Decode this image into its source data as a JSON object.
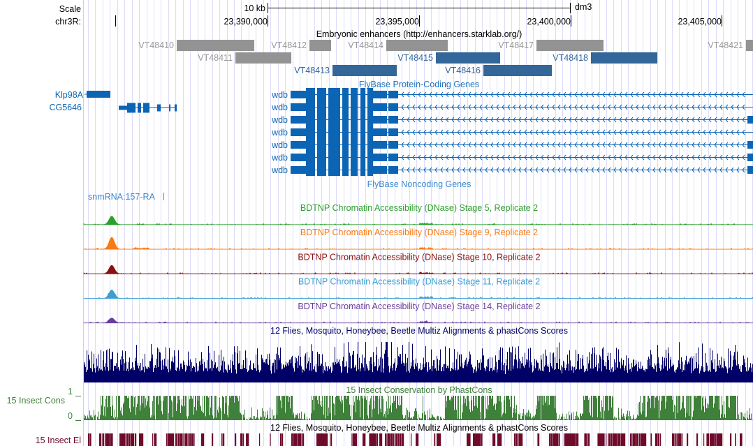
{
  "browser": {
    "scale_label": "Scale",
    "scale_bar_label": "10 kb",
    "assembly": "dm3",
    "chrom_label": "chr3R:",
    "ticks": [
      "23,390,000",
      "23,395,000",
      "23,400,000",
      "23,405,000"
    ]
  },
  "tracks": {
    "enhancers": {
      "title": "Embryonic enhancers (http://enhancers.starklab.org/)",
      "items": [
        {
          "name": "VT48410",
          "color": "#939393"
        },
        {
          "name": "VT48412",
          "color": "#939393"
        },
        {
          "name": "VT48414",
          "color": "#939393"
        },
        {
          "name": "VT48417",
          "color": "#939393"
        },
        {
          "name": "VT48421",
          "color": "#939393"
        },
        {
          "name": "VT48411",
          "color": "#939393"
        },
        {
          "name": "VT48415",
          "color": "#336699"
        },
        {
          "name": "VT48418",
          "color": "#336699"
        },
        {
          "name": "VT48413",
          "color": "#336699"
        },
        {
          "name": "VT48416",
          "color": "#336699"
        }
      ]
    },
    "coding_genes": {
      "title": "FlyBase Protein-Coding Genes",
      "color": "#0b64b4",
      "genes": [
        "Klp98A",
        "CG5646",
        "wdb",
        "wdb",
        "wdb",
        "wdb",
        "wdb",
        "wdb",
        "wdb"
      ]
    },
    "noncoding_genes": {
      "title": "FlyBase Noncoding Genes",
      "genes": [
        "snmRNA:157-RA"
      ]
    },
    "dnase": [
      {
        "title": "BDTNP Chromatin Accessibility (DNase) Stage 5, Replicate 2",
        "color": "#2ca02c"
      },
      {
        "title": "BDTNP Chromatin Accessibility (DNase) Stage 9, Replicate 2",
        "color": "#f97a12"
      },
      {
        "title": "BDTNP Chromatin Accessibility (DNase) Stage 10, Replicate 2",
        "color": "#8b1010"
      },
      {
        "title": "BDTNP Chromatin Accessibility (DNase) Stage 11, Replicate 2",
        "color": "#3a9fd4"
      },
      {
        "title": "BDTNP Chromatin Accessibility (DNase) Stage 14, Replicate 2",
        "color": "#6a3d9a"
      }
    ],
    "multiz": {
      "title": "12 Flies, Mosquito, Honeybee, Beetle Multiz Alignments & phastCons Scores",
      "color": "#000066"
    },
    "cons": {
      "title": "15 Insect Conservation by PhastCons",
      "label": "15 Insect Cons",
      "ymax": "1",
      "ymin": "0",
      "color": "#3f803a"
    },
    "elements": {
      "title": "12 Flies, Mosquito, Honeybee, Beetle Multiz Alignments & phastCons Scores",
      "label": "15 Insect El",
      "color": "#6e0a2a"
    }
  }
}
